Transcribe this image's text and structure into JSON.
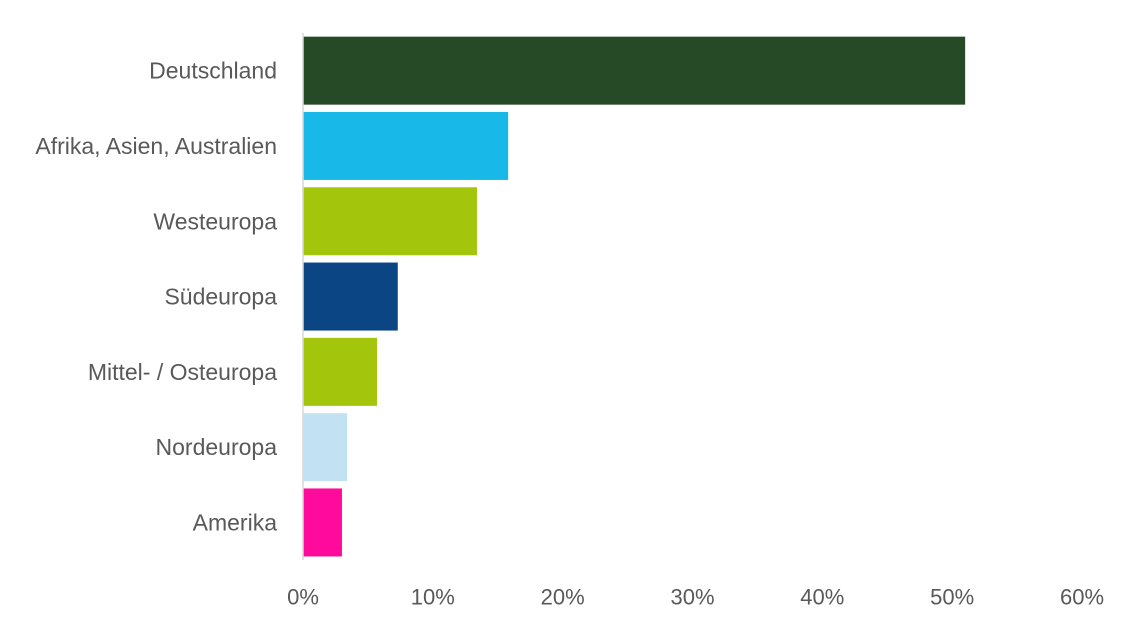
{
  "chart_data": {
    "type": "bar",
    "orientation": "horizontal",
    "title": "",
    "xlabel": "",
    "ylabel": "",
    "xlim": [
      0,
      60
    ],
    "x_ticks": [
      "0%",
      "10%",
      "20%",
      "30%",
      "40%",
      "50%",
      "60%"
    ],
    "grid": false,
    "categories": [
      "Deutschland",
      "Afrika, Asien, Australien",
      "Westeuropa",
      "Südeuropa",
      "Mittel- / Osteuropa",
      "Nordeuropa",
      "Amerika"
    ],
    "values": [
      51,
      15.8,
      13.4,
      7.3,
      5.7,
      3.4,
      3.0
    ],
    "unit": "%",
    "colors": [
      "#254a25",
      "#18b8e8",
      "#a3c60c",
      "#0b4584",
      "#a3c60c",
      "#c2e2f4",
      "#ff0a9c"
    ]
  }
}
